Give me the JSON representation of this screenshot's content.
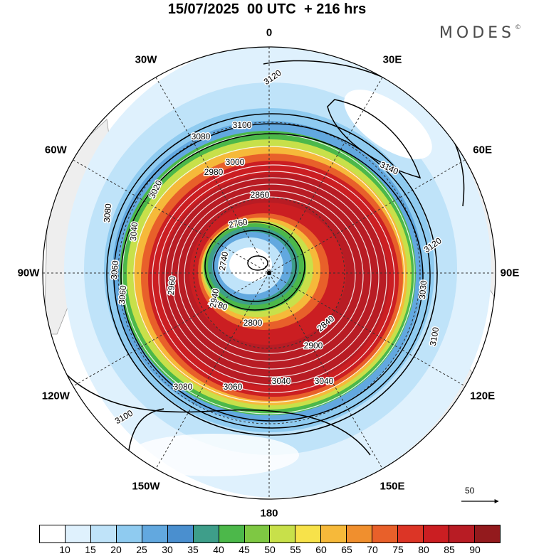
{
  "title": "15/07/2025  00 UTC  + 216 hrs",
  "brand": {
    "name": "MODES",
    "mark": "©"
  },
  "longitude_labels": [
    {
      "text": "0",
      "angle": 0
    },
    {
      "text": "30E",
      "angle": 30
    },
    {
      "text": "60E",
      "angle": 60
    },
    {
      "text": "90E",
      "angle": 90
    },
    {
      "text": "120E",
      "angle": 120
    },
    {
      "text": "150E",
      "angle": 150
    },
    {
      "text": "180",
      "angle": 180
    },
    {
      "text": "150W",
      "angle": 210
    },
    {
      "text": "120W",
      "angle": 240
    },
    {
      "text": "90W",
      "angle": 270
    },
    {
      "text": "60W",
      "angle": 300
    },
    {
      "text": "30W",
      "angle": 330
    }
  ],
  "contour_labels": [
    "3120",
    "3100",
    "3080",
    "2980",
    "3000",
    "3020",
    "3040",
    "3060",
    "3140",
    "3120",
    "3080",
    "3060",
    "2760",
    "2740",
    "2780",
    "2800",
    "2840",
    "2900",
    "3030",
    "3100",
    "3080",
    "3060",
    "3040",
    "3040",
    "3100",
    "2860",
    "2940",
    "2960"
  ],
  "reference_vector": {
    "value": "50"
  },
  "colorbar": {
    "colors": [
      "#ffffff",
      "#dff1fd",
      "#bfe3f9",
      "#8fcbf0",
      "#62a8df",
      "#4a8fcf",
      "#3e9e8a",
      "#4cb84a",
      "#7ec843",
      "#c8e04a",
      "#f7e24a",
      "#f6b93a",
      "#f08f2e",
      "#e8602a",
      "#dc3526",
      "#cb1e22",
      "#b81c24",
      "#931a1d"
    ],
    "ticks": [
      "10",
      "15",
      "20",
      "25",
      "30",
      "35",
      "40",
      "45",
      "50",
      "55",
      "60",
      "65",
      "70",
      "75",
      "80",
      "85",
      "90"
    ]
  }
}
